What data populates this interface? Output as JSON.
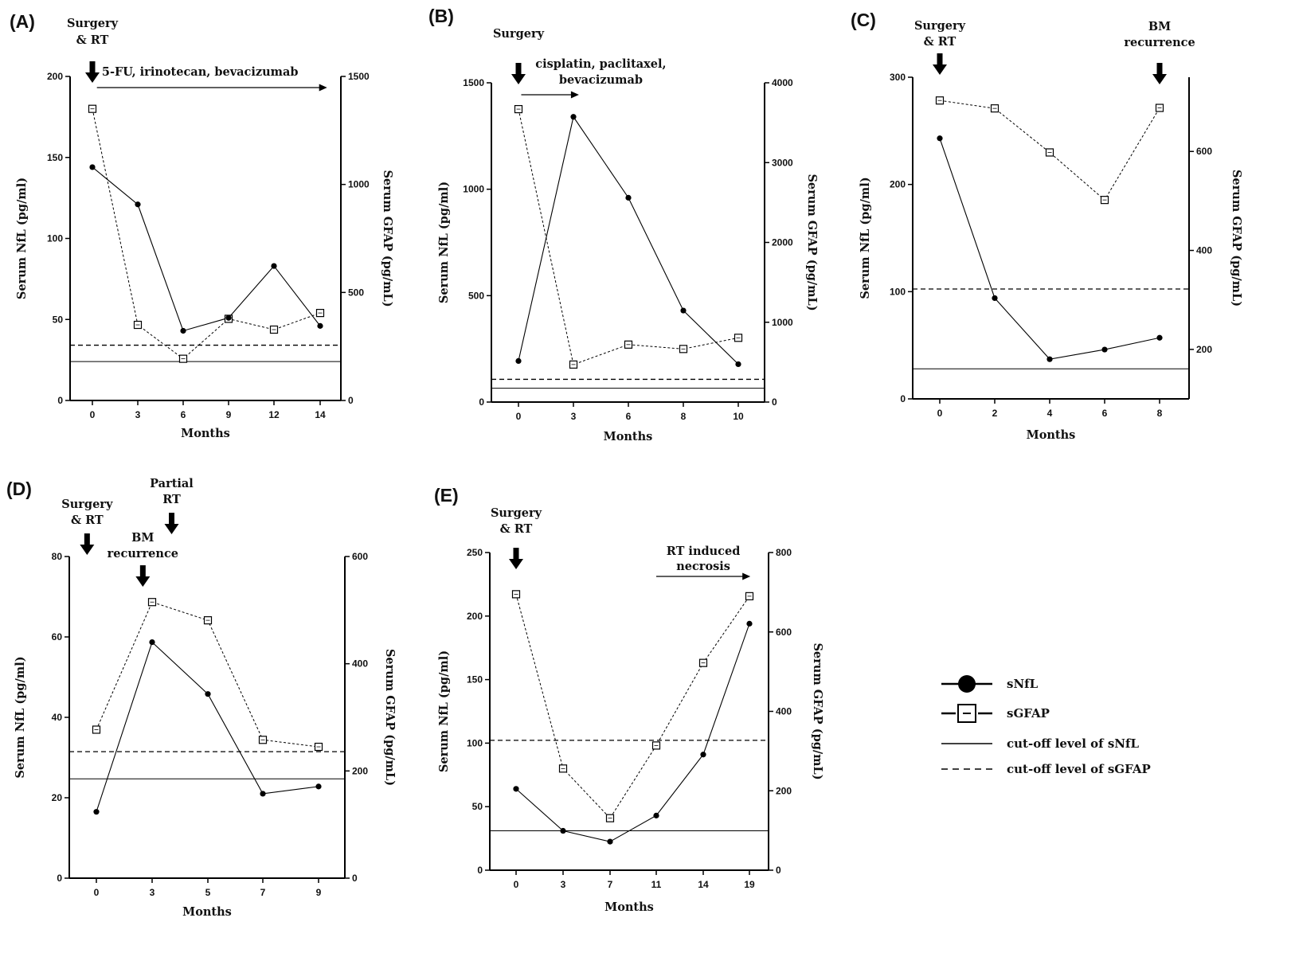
{
  "figure": {
    "series_names": {
      "nfl": "sNfL",
      "gfap": "sGFAP"
    },
    "legend": [
      {
        "key": "nfl",
        "label": "sNfL"
      },
      {
        "key": "gfap",
        "label": "sGFAP"
      },
      {
        "key": "nfl_cut",
        "label": "cut-off level of sNfL"
      },
      {
        "key": "gfap_cut",
        "label": "cut-off level of sGFAP"
      }
    ]
  },
  "chart_data": [
    {
      "id": "A",
      "panel_label": "(A)",
      "type": "line",
      "xlabel": "Months",
      "ylabel": "Serum NfL (pg/ml)",
      "y2label": "Serum  GFAP (pg/mL)",
      "x": [
        0,
        3,
        6,
        9,
        12,
        14
      ],
      "xticks": [
        "0",
        "3",
        "6",
        "9",
        "12",
        "14"
      ],
      "ylim": [
        0,
        200
      ],
      "yticks": [
        0,
        50,
        100,
        150,
        200
      ],
      "y2lim": [
        0,
        1500
      ],
      "y2ticks": [
        0,
        500,
        1000,
        1500
      ],
      "series": [
        {
          "name": "sNfL",
          "axis": "left",
          "values": [
            144,
            121,
            43,
            51,
            83,
            46
          ]
        },
        {
          "name": "sGFAP",
          "axis": "right",
          "values": [
            1350,
            350,
            193,
            378,
            328,
            405
          ]
        }
      ],
      "cutoff_nfl": 24,
      "cutoff_gfap": 256,
      "annotations": [
        {
          "kind": "arrow-down",
          "text": [
            "Surgery",
            "& RT"
          ],
          "x": 0
        },
        {
          "kind": "span",
          "text": [
            "5-FU, irinotecan, bevacizumab"
          ],
          "x_start": 0.3,
          "x_end": 14.3
        }
      ]
    },
    {
      "id": "B",
      "panel_label": "(B)",
      "type": "line",
      "xlabel": "Months",
      "ylabel": "Serum NfL (pg/ml)",
      "y2label": "Serum  GFAP (pg/mL)",
      "x": [
        0,
        3,
        6,
        8,
        10
      ],
      "xticks": [
        "0",
        "3",
        "6",
        "8",
        "10"
      ],
      "ylim": [
        0,
        1500
      ],
      "yticks": [
        0,
        500,
        1000,
        1500
      ],
      "y2lim": [
        0,
        4000
      ],
      "y2ticks": [
        0,
        1000,
        2000,
        3000,
        4000
      ],
      "series": [
        {
          "name": "sNfL",
          "axis": "left",
          "values": [
            193,
            1340,
            960,
            430,
            178
          ]
        },
        {
          "name": "sGFAP",
          "axis": "right",
          "values": [
            3670,
            470,
            720,
            665,
            805
          ]
        }
      ],
      "cutoff_nfl": 65,
      "cutoff_gfap": 285,
      "annotations": [
        {
          "kind": "arrow-down",
          "text": [
            "Surgery"
          ],
          "x": 0
        },
        {
          "kind": "span",
          "text": [
            "cisplatin, paclitaxel,",
            "bevacizumab"
          ],
          "x_start": 0.15,
          "x_end": 3.3
        }
      ]
    },
    {
      "id": "C",
      "panel_label": "(C)",
      "type": "line",
      "xlabel": "Months",
      "ylabel": "Serum NfL (pg/ml)",
      "y2label": "Serum  GFAP (pg/mL)",
      "x": [
        0,
        2,
        4,
        6,
        8
      ],
      "xticks": [
        "0",
        "2",
        "4",
        "6",
        "8"
      ],
      "ylim": [
        0,
        300
      ],
      "yticks": [
        0,
        100,
        200,
        300
      ],
      "y2lim": [
        100,
        750
      ],
      "y2ticks": [
        200,
        400,
        600
      ],
      "series": [
        {
          "name": "sNfL",
          "axis": "left",
          "values": [
            243,
            94,
            37,
            46,
            57
          ]
        },
        {
          "name": "sGFAP",
          "axis": "right",
          "values": [
            703,
            687,
            598,
            502,
            688
          ]
        }
      ],
      "cutoff_nfl": 28,
      "cutoff_gfap": 322,
      "annotations": [
        {
          "kind": "arrow-down",
          "text": [
            "Surgery",
            "& RT"
          ],
          "x": 0
        },
        {
          "kind": "arrow-down",
          "text": [
            "BM",
            "recurrence"
          ],
          "x": 8
        }
      ]
    },
    {
      "id": "D",
      "panel_label": "(D)",
      "type": "line",
      "xlabel": "Months",
      "ylabel": "Serum NfL (pg/ml)",
      "y2label": "Serum  GFAP (pg/mL)",
      "x": [
        0,
        3,
        5,
        7,
        9
      ],
      "xticks": [
        "0",
        "3",
        "5",
        "7",
        "9"
      ],
      "ylim": [
        0,
        80
      ],
      "yticks": [
        0,
        20,
        40,
        60,
        80
      ],
      "y2lim": [
        0,
        600
      ],
      "y2ticks": [
        0,
        200,
        400,
        600
      ],
      "series": [
        {
          "name": "sNfL",
          "axis": "left",
          "values": [
            16.5,
            58.7,
            45.8,
            21,
            22.8
          ]
        },
        {
          "name": "sGFAP",
          "axis": "right",
          "values": [
            277,
            515,
            481,
            258,
            245
          ]
        }
      ],
      "cutoff_nfl": 24.7,
      "cutoff_gfap": 236,
      "annotations": [
        {
          "kind": "arrow-down",
          "text": [
            "Surgery",
            "& RT"
          ],
          "x": -0.5
        },
        {
          "kind": "arrow-down",
          "text": [
            "BM",
            "recurrence"
          ],
          "x": 2.5
        },
        {
          "kind": "arrow-down",
          "text": [
            "Partial",
            "RT"
          ],
          "x": 3.7
        }
      ]
    },
    {
      "id": "E",
      "panel_label": "(E)",
      "type": "line",
      "xlabel": "Months",
      "ylabel": "Serum NfL (pg/ml)",
      "y2label": "Serum  GFAP (pg/mL)",
      "x": [
        0,
        3,
        7,
        11,
        14,
        19
      ],
      "xticks": [
        "0",
        "3",
        "7",
        "11",
        "14",
        "19"
      ],
      "ylim": [
        0,
        250
      ],
      "yticks": [
        0,
        50,
        100,
        150,
        200,
        250
      ],
      "y2lim": [
        0,
        800
      ],
      "y2ticks": [
        0,
        200,
        400,
        600,
        800
      ],
      "series": [
        {
          "name": "sNfL",
          "axis": "left",
          "values": [
            64,
            31,
            22.5,
            43,
            91,
            194
          ]
        },
        {
          "name": "sGFAP",
          "axis": "right",
          "values": [
            695,
            256,
            131,
            314,
            522,
            690
          ]
        }
      ],
      "cutoff_nfl": 31,
      "cutoff_gfap": 327,
      "annotations": [
        {
          "kind": "arrow-down",
          "text": [
            "Surgery",
            "& RT"
          ],
          "x": 0
        },
        {
          "kind": "span",
          "text": [
            "RT induced",
            "necrosis"
          ],
          "x_start": 11,
          "x_end": 19.1
        }
      ]
    }
  ]
}
